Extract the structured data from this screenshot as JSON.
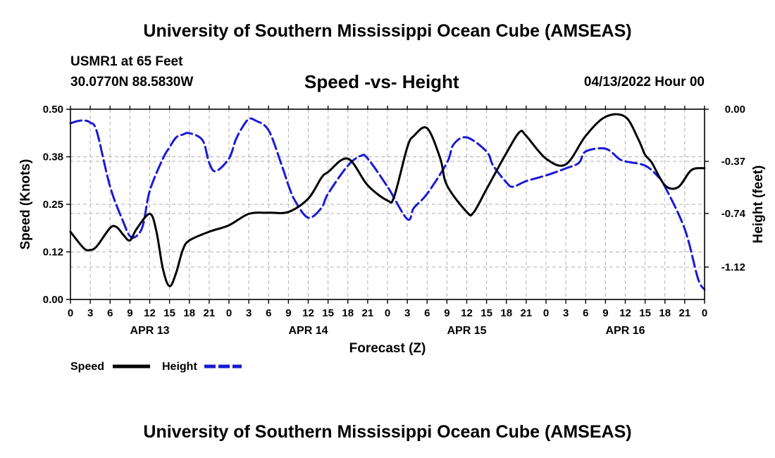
{
  "header": {
    "title_top": "University of Southern Mississippi Ocean Cube (AMSEAS)",
    "title_bottom": "University of Southern Mississippi Ocean Cube (AMSEAS)",
    "station": "USMR1 at 65 Feet",
    "coords": "30.0770N  88.5830W",
    "date": "04/13/2022 Hour 00"
  },
  "colors": {
    "speed": "#000000",
    "height": "#1a1ad6",
    "grid": "#b0b0b0"
  },
  "chart_data": {
    "type": "line",
    "title": "Speed -vs- Height",
    "xlabel": "Forecast (Z)",
    "ylabel": "Speed (Knots)",
    "y2label": "Height (feet)",
    "x_range": [
      0,
      96
    ],
    "ylim": [
      0,
      0.5
    ],
    "y2lim": [
      -1.35,
      0.0
    ],
    "y_ticks": [
      0.0,
      0.125,
      0.25,
      0.375,
      0.5
    ],
    "y_tick_labels": [
      "0.00",
      "0.12",
      "0.25",
      "0.38",
      "0.50"
    ],
    "y2_ticks": [
      0.0,
      -0.37,
      -0.74,
      -1.12
    ],
    "y2_tick_labels": [
      "0.00",
      "-0.37",
      "-0.74",
      "-1.12"
    ],
    "x_ticks": [
      0,
      3,
      6,
      9,
      12,
      15,
      18,
      21,
      24,
      27,
      30,
      33,
      36,
      39,
      42,
      45,
      48,
      51,
      54,
      57,
      60,
      63,
      66,
      69,
      72,
      75,
      78,
      81,
      84,
      87,
      90,
      93,
      96
    ],
    "x_tick_labels": [
      "0",
      "3",
      "6",
      "9",
      "12",
      "15",
      "18",
      "21",
      "0",
      "3",
      "6",
      "9",
      "12",
      "15",
      "18",
      "21",
      "0",
      "3",
      "6",
      "9",
      "12",
      "15",
      "18",
      "21",
      "0",
      "3",
      "6",
      "9",
      "12",
      "15",
      "18",
      "21",
      "0"
    ],
    "day_labels": [
      {
        "x": 12,
        "label": "APR 13"
      },
      {
        "x": 36,
        "label": "APR 14"
      },
      {
        "x": 60,
        "label": "APR 15"
      },
      {
        "x": 84,
        "label": "APR 16"
      }
    ],
    "legend": [
      {
        "name": "Speed",
        "style": "solid"
      },
      {
        "name": "Height",
        "style": "dashed"
      }
    ],
    "series": [
      {
        "name": "Speed",
        "axis": "left",
        "style": "solid",
        "x": [
          0,
          2,
          3,
          4,
          6,
          7,
          8,
          9,
          10,
          12,
          13,
          14,
          15,
          16,
          17,
          18,
          21,
          24,
          27,
          30,
          33,
          36,
          38,
          39,
          42,
          45,
          48,
          49,
          51,
          52,
          54,
          56,
          57,
          60,
          61,
          63,
          66,
          68,
          69,
          72,
          75,
          78,
          81,
          84,
          86,
          87,
          88,
          90,
          92,
          94,
          96
        ],
        "values": [
          0.178,
          0.135,
          0.13,
          0.14,
          0.188,
          0.19,
          0.17,
          0.155,
          0.185,
          0.225,
          0.18,
          0.08,
          0.035,
          0.07,
          0.13,
          0.155,
          0.178,
          0.195,
          0.225,
          0.228,
          0.23,
          0.265,
          0.32,
          0.335,
          0.37,
          0.3,
          0.26,
          0.27,
          0.4,
          0.43,
          0.45,
          0.37,
          0.3,
          0.23,
          0.228,
          0.29,
          0.385,
          0.44,
          0.43,
          0.37,
          0.355,
          0.43,
          0.48,
          0.48,
          0.42,
          0.38,
          0.36,
          0.3,
          0.295,
          0.34,
          0.345
        ]
      },
      {
        "name": "Height",
        "axis": "right",
        "style": "dashed",
        "x": [
          0,
          1,
          2,
          3,
          4,
          6,
          8,
          9,
          10,
          11,
          12,
          14,
          15,
          16,
          17,
          18,
          20,
          21,
          22,
          24,
          25,
          26,
          27,
          28,
          30,
          32,
          33,
          34,
          36,
          38,
          39,
          42,
          44,
          45,
          48,
          51,
          52,
          54,
          57,
          58,
          60,
          63,
          64,
          66,
          67,
          69,
          72,
          75,
          77,
          78,
          81,
          83,
          84,
          87,
          89,
          90,
          93,
          95,
          96
        ],
        "values": [
          -0.1,
          -0.085,
          -0.08,
          -0.095,
          -0.16,
          -0.55,
          -0.8,
          -0.9,
          -0.9,
          -0.82,
          -0.58,
          -0.35,
          -0.27,
          -0.2,
          -0.18,
          -0.17,
          -0.22,
          -0.38,
          -0.44,
          -0.35,
          -0.22,
          -0.13,
          -0.07,
          -0.08,
          -0.15,
          -0.4,
          -0.54,
          -0.65,
          -0.77,
          -0.7,
          -0.6,
          -0.4,
          -0.33,
          -0.35,
          -0.55,
          -0.78,
          -0.7,
          -0.6,
          -0.38,
          -0.25,
          -0.2,
          -0.3,
          -0.4,
          -0.52,
          -0.55,
          -0.51,
          -0.47,
          -0.42,
          -0.38,
          -0.3,
          -0.28,
          -0.35,
          -0.37,
          -0.4,
          -0.48,
          -0.55,
          -0.85,
          -1.2,
          -1.28
        ]
      }
    ]
  }
}
